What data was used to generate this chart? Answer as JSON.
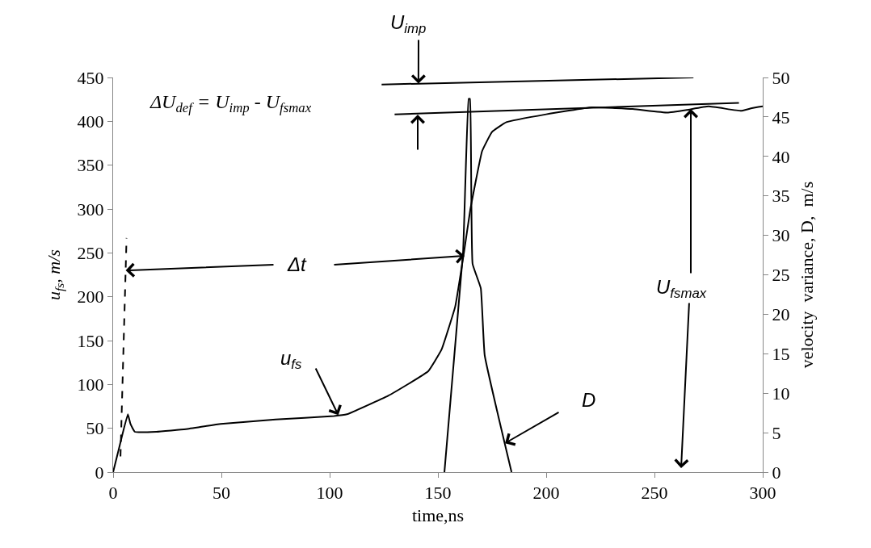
{
  "chart_data": {
    "type": "line",
    "xlabel": "time,ns",
    "ylabel": "u$_{fs}$, m/s",
    "y2label": "velocity  variance, D,  m/s",
    "xlim": [
      0,
      300
    ],
    "xticks": [
      0,
      50,
      100,
      150,
      200,
      250,
      300
    ],
    "ylim": [
      0,
      450
    ],
    "yticks": [
      0,
      50,
      100,
      150,
      200,
      250,
      300,
      350,
      400,
      450
    ],
    "y2lim": [
      0,
      50
    ],
    "y2ticks": [
      0,
      5,
      10,
      15,
      20,
      25,
      30,
      35,
      40,
      45,
      50
    ],
    "marker": "none",
    "series": [
      {
        "color": "#000000",
        "x": [
          0,
          3,
          6.8,
          8,
          10,
          20,
          33.6,
          49.7,
          75,
          102,
          108,
          127,
          145.5,
          151.7,
          158,
          162,
          165,
          170.4,
          175,
          181.6,
          200,
          221,
          240,
          256,
          265,
          275,
          290,
          295,
          300
        ],
        "values": [
          0,
          30,
          66,
          55,
          46,
          46,
          49,
          55,
          60,
          64,
          66,
          87,
          115,
          140,
          189,
          250,
          300,
          366,
          388,
          399,
          408,
          416,
          414,
          410,
          413,
          417,
          412,
          415,
          417
        ]
      },
      {
        "color": "#000000",
        "axis": "y2",
        "x": [
          153,
          161.6,
          164.2,
          164.8,
          166,
          169.8,
          171.6,
          184
        ],
        "values": [
          0,
          27.8,
          47.3,
          47.3,
          26.4,
          23.3,
          14.8,
          0
        ]
      },
      {
        "color": "#000000",
        "x": [
          124,
          268
        ],
        "values": [
          442,
          450
        ]
      },
      {
        "color": "#000000",
        "x": [
          130,
          289
        ],
        "values": [
          408,
          421
        ]
      },
      {
        "color": "#000000",
        "line_style": "dashed",
        "x": [
          3.4,
          6.2
        ],
        "values": [
          18,
          267
        ]
      }
    ],
    "annotations": [
      {
        "text": "U$_{imp}$",
        "x": 141,
        "y": 443
      },
      "ΔU$_{def}$ = U$_{imp}$ - U$_{fsmax}$",
      {
        "text": "Δt",
        "x": 5.8,
        "y": 230
      },
      {
        "text": "u$_{fs}$",
        "x": 104,
        "y": 65
      },
      {
        "text": "D",
        "x": 181,
        "y": 33
      },
      {
        "text": "U$_{fsmax}$",
        "x": 266.8,
        "y": 414
      }
    ]
  }
}
